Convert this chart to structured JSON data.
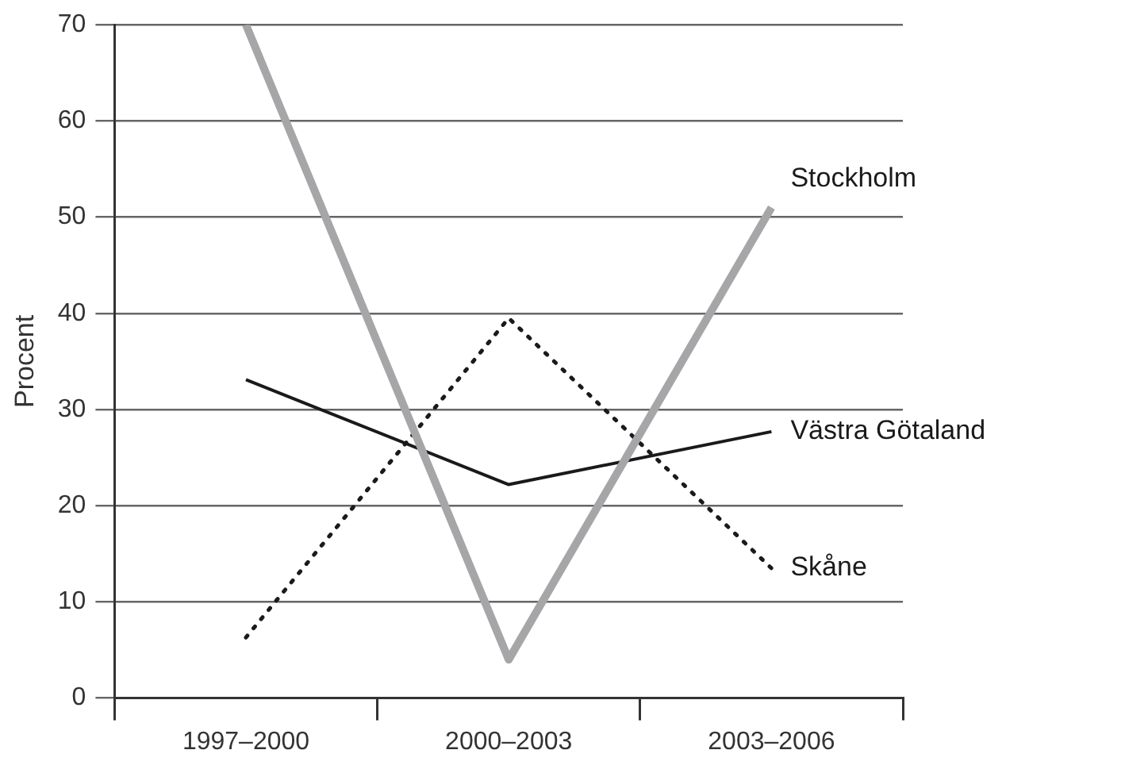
{
  "chart_data": {
    "type": "line",
    "ylabel": "Procent",
    "categories": [
      "1997–2000",
      "2000–2003",
      "2003–2006"
    ],
    "series": [
      {
        "name": "Stockholm",
        "color": "#a6a6a8",
        "values": [
          70,
          4,
          51
        ],
        "line_style": "solid"
      },
      {
        "name": "Västra Götaland",
        "color": "#1a1a1a",
        "values": [
          33.1,
          22.2,
          27.7
        ],
        "line_style": "solid"
      },
      {
        "name": "Skåne",
        "color": "#1a1a1a",
        "values": [
          6.3,
          39.5,
          13.5
        ],
        "line_style": "dotted"
      }
    ],
    "ylim": [
      0,
      70
    ],
    "yticks": [
      0,
      10,
      20,
      30,
      40,
      50,
      60,
      70
    ],
    "grid": "y",
    "legend": false,
    "marker": "none"
  }
}
